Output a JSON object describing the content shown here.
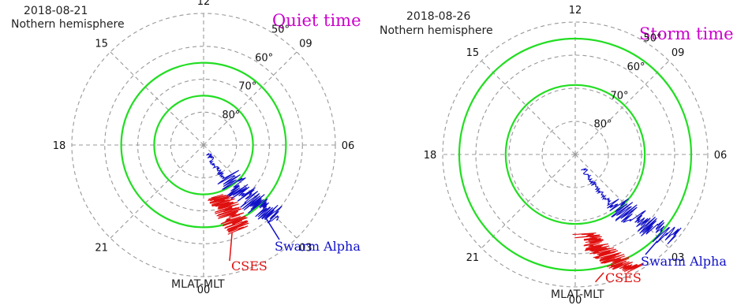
{
  "chart_data": [
    {
      "type": "polar",
      "date": "2018-08-21",
      "hemisphere": "Nothern hemisphere",
      "condition": "Quiet time",
      "coord_label": "MLAT-MLT",
      "mlt_labels": [
        "12",
        "09",
        "06",
        "03",
        "00",
        "21",
        "18",
        "15"
      ],
      "mlat_labels": [
        "50°",
        "60°",
        "70°",
        "80°"
      ],
      "mlat_rings": [
        50,
        60,
        70,
        80
      ],
      "oval_boundaries_mlat": [
        65,
        75
      ],
      "colors": {
        "cses": "#e01010",
        "swarm": "#1010c8",
        "oval": "#22dd22",
        "grid": "#999999",
        "condition": "#cc00cc"
      },
      "series": [
        {
          "name": "CSES",
          "color": "#e01010",
          "mlt_range": [
            0.9,
            1.4
          ],
          "mlat_range": [
            62,
            74
          ]
        },
        {
          "name": "Swarm Alpha",
          "color": "#1010c8",
          "mlt_range": [
            1.6,
            3.0
          ],
          "mlat_range": [
            58,
            87
          ]
        }
      ]
    },
    {
      "type": "polar",
      "date": "2018-08-26",
      "hemisphere": "Nothern hemisphere",
      "condition": "Storm time",
      "coord_label": "MLAT-MLT",
      "mlt_labels": [
        "12",
        "09",
        "06",
        "03",
        "00",
        "21",
        "18",
        "15"
      ],
      "mlat_labels": [
        "50°",
        "60°",
        "70°",
        "80°"
      ],
      "mlat_rings": [
        50,
        60,
        70,
        80
      ],
      "oval_boundaries_mlat": [
        55,
        69
      ],
      "colors": {
        "cses": "#e01010",
        "swarm": "#1010c8",
        "oval": "#22dd22",
        "grid": "#999999",
        "condition": "#cc00cc"
      },
      "series": [
        {
          "name": "CSES",
          "color": "#e01010",
          "mlt_range": [
            0.3,
            1.7
          ],
          "mlat_range": [
            51,
            66
          ]
        },
        {
          "name": "Swarm Alpha",
          "color": "#1010c8",
          "mlt_range": [
            1.8,
            3.2
          ],
          "mlat_range": [
            51,
            85
          ]
        }
      ]
    }
  ]
}
